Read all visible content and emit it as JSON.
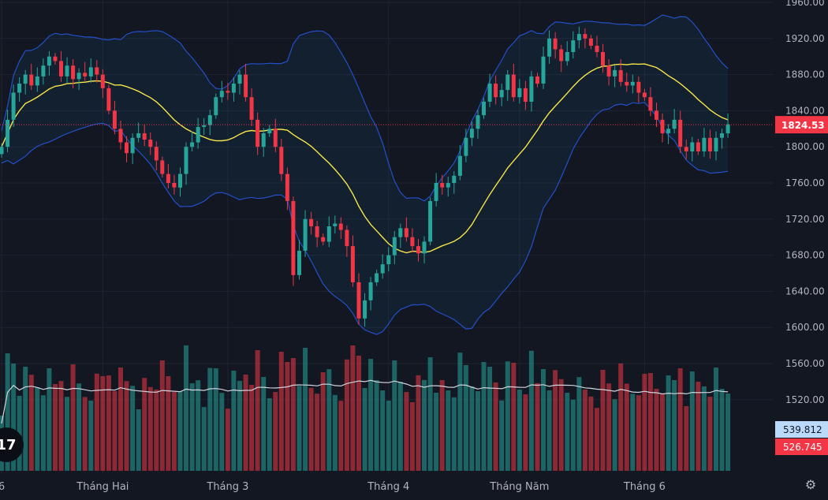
{
  "chart_data": {
    "type": "candlestick",
    "y_axis": {
      "ticks": [
        "1960.00",
        "1920.00",
        "1880.00",
        "1840.00",
        "1800.00",
        "1760.00",
        "1720.00",
        "1680.00",
        "1640.00",
        "1600.00",
        "1560.00",
        "1520.00"
      ],
      "ylim": [
        1500,
        1960
      ]
    },
    "x_axis": {
      "ticks": [
        {
          "label": "6",
          "index": 0
        },
        {
          "label": "Tháng Hai",
          "index": 17
        },
        {
          "label": "Tháng 3",
          "index": 38
        },
        {
          "label": "Tháng 4",
          "index": 65
        },
        {
          "label": "Tháng Năm",
          "index": 87
        },
        {
          "label": "Tháng 6",
          "index": 108
        }
      ]
    },
    "last_price": {
      "label": "1824.53",
      "value": 1824.53,
      "color": "#f23645"
    },
    "volume_labels": [
      {
        "label": "539.812",
        "color": "#bbd9fb",
        "text_color": "#131722"
      },
      {
        "label": "526.745",
        "color": "#f23645",
        "text_color": "#ffffff"
      }
    ],
    "colors": {
      "up": "#26a69a",
      "down": "#f23645",
      "ma": "#f5e64a",
      "band": "#2962ff",
      "vol_ma": "#d1d4dc"
    },
    "closes": [
      1800,
      1830,
      1860,
      1870,
      1880,
      1868,
      1878,
      1890,
      1900,
      1895,
      1878,
      1890,
      1875,
      1882,
      1878,
      1888,
      1880,
      1865,
      1840,
      1820,
      1805,
      1793,
      1810,
      1815,
      1808,
      1800,
      1785,
      1770,
      1760,
      1755,
      1770,
      1800,
      1805,
      1822,
      1824,
      1835,
      1855,
      1862,
      1860,
      1870,
      1880,
      1855,
      1830,
      1800,
      1815,
      1820,
      1800,
      1770,
      1740,
      1658,
      1685,
      1720,
      1712,
      1700,
      1695,
      1712,
      1715,
      1708,
      1690,
      1650,
      1610,
      1630,
      1650,
      1660,
      1670,
      1680,
      1700,
      1710,
      1700,
      1690,
      1682,
      1695,
      1740,
      1760,
      1755,
      1760,
      1768,
      1790,
      1810,
      1820,
      1835,
      1850,
      1870,
      1855,
      1863,
      1880,
      1855,
      1865,
      1850,
      1878,
      1870,
      1900,
      1920,
      1908,
      1895,
      1905,
      1918,
      1925,
      1920,
      1912,
      1905,
      1890,
      1878,
      1885,
      1872,
      1868,
      1872,
      1860,
      1855,
      1840,
      1830,
      1815,
      1820,
      1830,
      1800,
      1795,
      1805,
      1795,
      1810,
      1795,
      1810,
      1815,
      1825
    ]
  }
}
